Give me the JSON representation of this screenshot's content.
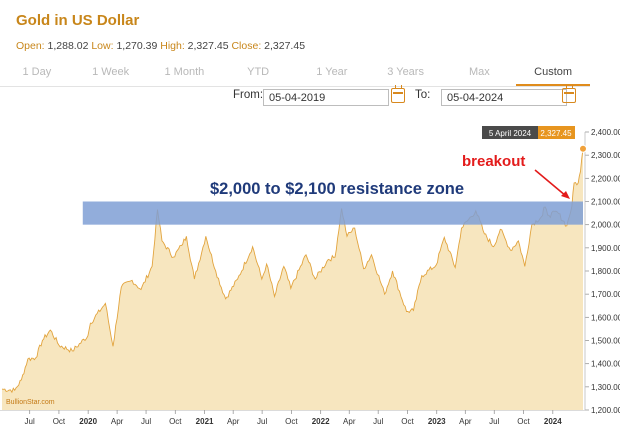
{
  "header": {
    "title": "Gold in US Dollar",
    "open_label": "Open:",
    "open_value": "1,288.02",
    "low_label": "Low:",
    "low_value": "1,270.39",
    "high_label": "High:",
    "high_value": "2,327.45",
    "close_label": "Close:",
    "close_value": "2,327.45"
  },
  "tabs": [
    "1 Day",
    "1 Week",
    "1 Month",
    "YTD",
    "1 Year",
    "3 Years",
    "Max",
    "Custom"
  ],
  "active_tab": "Custom",
  "range": {
    "from_label": "From:",
    "from_value": "05-04-2019",
    "to_label": "To:",
    "to_value": "05-04-2024"
  },
  "chart_data": {
    "type": "area",
    "title": "",
    "xlabel": "",
    "ylabel": "",
    "ylim": [
      1200,
      2400
    ],
    "y_ticks": [
      1200,
      1300,
      1400,
      1500,
      1600,
      1700,
      1800,
      1900,
      2000,
      2100,
      2200,
      2300,
      2400
    ],
    "y_tick_labels": [
      "1,200.00",
      "1,300.00",
      "1,400.00",
      "1,500.00",
      "1,600.00",
      "1,700.00",
      "1,800.00",
      "1,900.00",
      "2,000.00",
      "2,100.00",
      "2,200.00",
      "2,300.00",
      "2,400.00"
    ],
    "x_ticks": [
      {
        "label": "Jul",
        "date": "2019-07-01"
      },
      {
        "label": "Oct",
        "date": "2019-10-01"
      },
      {
        "label": "2020",
        "date": "2020-01-01"
      },
      {
        "label": "Apr",
        "date": "2020-04-01"
      },
      {
        "label": "Jul",
        "date": "2020-07-01"
      },
      {
        "label": "Oct",
        "date": "2020-10-01"
      },
      {
        "label": "2021",
        "date": "2021-01-01"
      },
      {
        "label": "Apr",
        "date": "2021-04-01"
      },
      {
        "label": "Jul",
        "date": "2021-07-01"
      },
      {
        "label": "Oct",
        "date": "2021-10-01"
      },
      {
        "label": "2022",
        "date": "2022-01-01"
      },
      {
        "label": "Apr",
        "date": "2022-04-01"
      },
      {
        "label": "Jul",
        "date": "2022-07-01"
      },
      {
        "label": "Oct",
        "date": "2022-10-01"
      },
      {
        "label": "2023",
        "date": "2023-01-01"
      },
      {
        "label": "Apr",
        "date": "2023-04-01"
      },
      {
        "label": "Jul",
        "date": "2023-07-01"
      },
      {
        "label": "Oct",
        "date": "2023-10-01"
      },
      {
        "label": "2024",
        "date": "2024-01-01"
      }
    ],
    "series": [
      {
        "values": [
          {
            "date": "2019-04-05",
            "y": 1290
          },
          {
            "date": "2019-05-15",
            "y": 1285
          },
          {
            "date": "2019-06-05",
            "y": 1330
          },
          {
            "date": "2019-06-25",
            "y": 1420
          },
          {
            "date": "2019-07-20",
            "y": 1425
          },
          {
            "date": "2019-08-10",
            "y": 1500
          },
          {
            "date": "2019-09-04",
            "y": 1545
          },
          {
            "date": "2019-10-01",
            "y": 1480
          },
          {
            "date": "2019-11-12",
            "y": 1455
          },
          {
            "date": "2019-12-31",
            "y": 1520
          },
          {
            "date": "2020-01-08",
            "y": 1575
          },
          {
            "date": "2020-02-24",
            "y": 1660
          },
          {
            "date": "2020-03-19",
            "y": 1475
          },
          {
            "date": "2020-04-14",
            "y": 1730
          },
          {
            "date": "2020-05-18",
            "y": 1760
          },
          {
            "date": "2020-06-15",
            "y": 1720
          },
          {
            "date": "2020-07-20",
            "y": 1820
          },
          {
            "date": "2020-08-06",
            "y": 2065
          },
          {
            "date": "2020-08-20",
            "y": 1930
          },
          {
            "date": "2020-09-25",
            "y": 1860
          },
          {
            "date": "2020-10-20",
            "y": 1910
          },
          {
            "date": "2020-11-05",
            "y": 1950
          },
          {
            "date": "2020-11-30",
            "y": 1765
          },
          {
            "date": "2021-01-05",
            "y": 1950
          },
          {
            "date": "2021-02-05",
            "y": 1800
          },
          {
            "date": "2021-03-08",
            "y": 1680
          },
          {
            "date": "2021-04-15",
            "y": 1765
          },
          {
            "date": "2021-06-01",
            "y": 1905
          },
          {
            "date": "2021-06-30",
            "y": 1765
          },
          {
            "date": "2021-07-15",
            "y": 1830
          },
          {
            "date": "2021-08-09",
            "y": 1690
          },
          {
            "date": "2021-09-07",
            "y": 1820
          },
          {
            "date": "2021-09-29",
            "y": 1725
          },
          {
            "date": "2021-11-16",
            "y": 1870
          },
          {
            "date": "2021-12-15",
            "y": 1765
          },
          {
            "date": "2022-01-25",
            "y": 1850
          },
          {
            "date": "2022-02-15",
            "y": 1860
          },
          {
            "date": "2022-03-08",
            "y": 2070
          },
          {
            "date": "2022-03-25",
            "y": 1950
          },
          {
            "date": "2022-04-18",
            "y": 1985
          },
          {
            "date": "2022-05-16",
            "y": 1810
          },
          {
            "date": "2022-06-10",
            "y": 1870
          },
          {
            "date": "2022-07-21",
            "y": 1700
          },
          {
            "date": "2022-08-15",
            "y": 1800
          },
          {
            "date": "2022-09-28",
            "y": 1625
          },
          {
            "date": "2022-10-20",
            "y": 1630
          },
          {
            "date": "2022-11-15",
            "y": 1780
          },
          {
            "date": "2022-12-30",
            "y": 1825
          },
          {
            "date": "2023-01-25",
            "y": 1945
          },
          {
            "date": "2023-02-28",
            "y": 1815
          },
          {
            "date": "2023-03-20",
            "y": 1985
          },
          {
            "date": "2023-05-04",
            "y": 2060
          },
          {
            "date": "2023-05-31",
            "y": 1960
          },
          {
            "date": "2023-06-29",
            "y": 1905
          },
          {
            "date": "2023-07-20",
            "y": 1980
          },
          {
            "date": "2023-08-21",
            "y": 1890
          },
          {
            "date": "2023-09-15",
            "y": 1930
          },
          {
            "date": "2023-10-05",
            "y": 1820
          },
          {
            "date": "2023-10-27",
            "y": 2000
          },
          {
            "date": "2023-11-30",
            "y": 2040
          },
          {
            "date": "2023-12-04",
            "y": 2075
          },
          {
            "date": "2023-12-20",
            "y": 2040
          },
          {
            "date": "2024-01-15",
            "y": 2055
          },
          {
            "date": "2024-02-14",
            "y": 1995
          },
          {
            "date": "2024-03-01",
            "y": 2080
          },
          {
            "date": "2024-03-08",
            "y": 2180
          },
          {
            "date": "2024-03-21",
            "y": 2180
          },
          {
            "date": "2024-03-28",
            "y": 2230
          },
          {
            "date": "2024-04-05",
            "y": 2327.45
          }
        ]
      }
    ],
    "resistance_zone": {
      "from": 2000,
      "to": 2100,
      "label": "$2,000 to $2,100 resistance zone",
      "color": "#7f9fd5"
    },
    "annotation": {
      "text": "breakout",
      "color": "#e31b1b"
    },
    "tooltip": {
      "date": "5 April 2024",
      "value": "2,327.45"
    },
    "colors": {
      "area_fill": "#f7e6bf",
      "line": "#e2a43e",
      "marker": "#f0a13a",
      "tooltip_bg": "#4a4a4a",
      "tooltip_value_bg": "#e7951f"
    },
    "grid": false,
    "watermark": "BullionStar.com"
  }
}
